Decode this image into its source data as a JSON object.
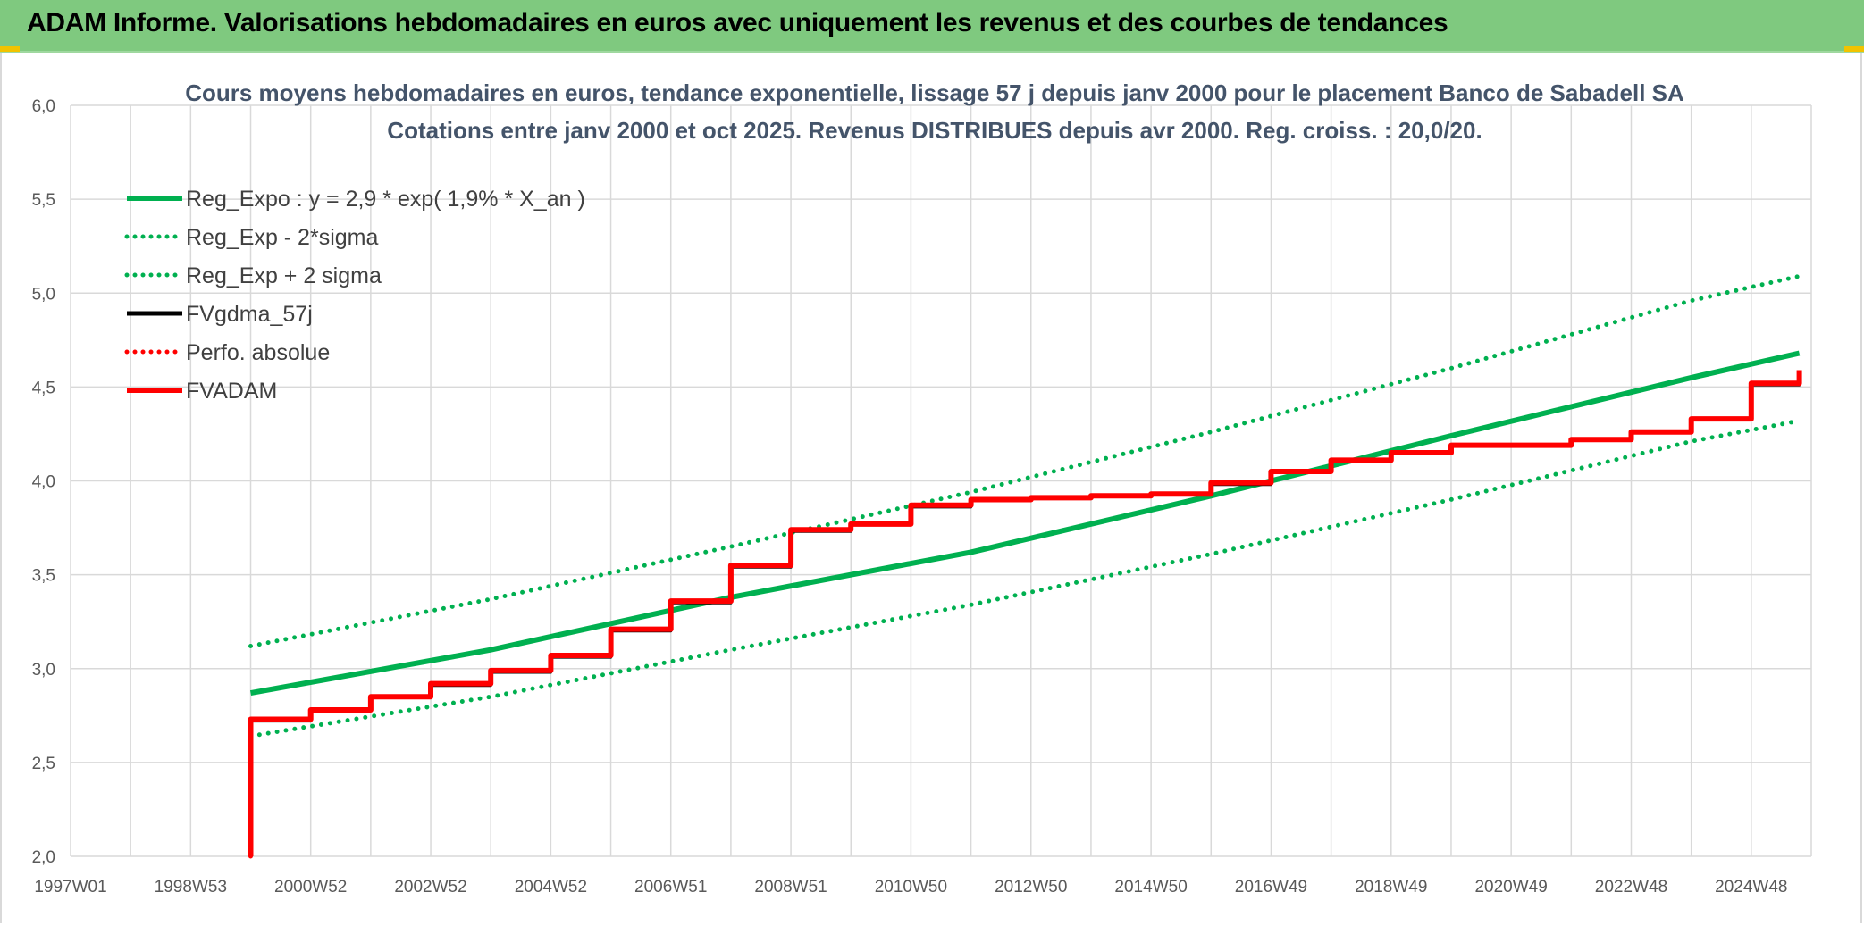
{
  "banner": {
    "title": "ADAM Informe. Valorisations hebdomadaires en euros avec uniquement les revenus et des courbes de tendances",
    "color": "#7fc97f"
  },
  "chart_data": {
    "type": "line",
    "title": "Cours moyens hebdomadaires en euros, tendance exponentielle, lissage 57 j depuis janv 2000 pour le placement Banco de Sabadell SA",
    "subtitle": "Cotations entre janv 2000 et oct 2025. Revenus DISTRIBUES depuis avr 2000. Reg. croiss. : 20,0/20.",
    "xlabel": "",
    "ylabel": "",
    "x_ticks": [
      "1997W01",
      "1998W53",
      "2000W52",
      "2002W52",
      "2004W52",
      "2006W51",
      "2008W51",
      "2010W50",
      "2012W50",
      "2014W50",
      "2016W49",
      "2018W49",
      "2020W49",
      "2022W48",
      "2024W48"
    ],
    "y_ticks": [
      "2,0",
      "2,5",
      "3,0",
      "3,5",
      "4,0",
      "4,5",
      "5,0",
      "5,5",
      "6,0"
    ],
    "ylim": [
      2.0,
      6.0
    ],
    "xlim": [
      1997.0,
      2026.0
    ],
    "grid": true,
    "legend_position": "top-left",
    "series": [
      {
        "name": "Reg_Expo : y = 2,9 * exp( 1,9% *  X_an )",
        "color": "#00b050",
        "style": "solid",
        "x": [
          2000.0,
          2004.0,
          2008.0,
          2012.0,
          2016.0,
          2020.0,
          2024.0,
          2025.8
        ],
        "values": [
          2.87,
          3.1,
          3.38,
          3.62,
          3.92,
          4.24,
          4.55,
          4.68
        ]
      },
      {
        "name": "Reg_Exp - 2*sigma",
        "color": "#00b050",
        "style": "dotted",
        "x": [
          2000.0,
          2004.0,
          2008.0,
          2012.0,
          2016.0,
          2020.0,
          2024.0,
          2025.8
        ],
        "values": [
          2.64,
          2.85,
          3.1,
          3.34,
          3.61,
          3.9,
          4.21,
          4.32
        ]
      },
      {
        "name": "Reg_Exp + 2 sigma",
        "color": "#00b050",
        "style": "dotted",
        "x": [
          2000.0,
          2004.0,
          2008.0,
          2012.0,
          2016.0,
          2020.0,
          2024.0,
          2025.8
        ],
        "values": [
          3.12,
          3.37,
          3.65,
          3.94,
          4.26,
          4.6,
          4.96,
          5.09
        ]
      },
      {
        "name": "FVgdma_57j",
        "color": "#000000",
        "style": "solid",
        "x": [
          2000.0,
          2001.0,
          2002.0,
          2003.0,
          2004.0,
          2005.0,
          2006.0,
          2007.0,
          2008.0,
          2009.0,
          2010.0,
          2011.0,
          2012.0,
          2013.0,
          2014.0,
          2015.0,
          2016.0,
          2017.0,
          2018.0,
          2019.0,
          2020.0,
          2021.0,
          2022.0,
          2023.0,
          2024.0,
          2025.0,
          2025.8
        ],
        "values": [
          2.72,
          2.78,
          2.85,
          2.91,
          2.98,
          3.06,
          3.2,
          3.35,
          3.54,
          3.73,
          3.77,
          3.86,
          3.9,
          3.91,
          3.92,
          3.93,
          3.98,
          4.05,
          4.1,
          4.15,
          4.19,
          4.19,
          4.22,
          4.26,
          4.33,
          4.51,
          4.59
        ]
      },
      {
        "name": "Perfo. absolue",
        "color": "#ff0000",
        "style": "dotted",
        "x": [
          2000.0,
          2001.0,
          2002.0,
          2003.0,
          2004.0,
          2005.0,
          2006.0,
          2007.0,
          2008.0,
          2009.0,
          2010.0,
          2011.0,
          2012.0,
          2013.0,
          2014.0,
          2015.0,
          2016.0,
          2017.0,
          2018.0,
          2019.0,
          2020.0,
          2021.0,
          2022.0,
          2023.0,
          2024.0,
          2025.0,
          2025.8
        ],
        "values": [
          2.73,
          2.78,
          2.85,
          2.92,
          2.99,
          3.07,
          3.21,
          3.36,
          3.55,
          3.74,
          3.77,
          3.87,
          3.9,
          3.91,
          3.92,
          3.93,
          3.99,
          4.05,
          4.11,
          4.15,
          4.19,
          4.19,
          4.22,
          4.26,
          4.33,
          4.52,
          4.59
        ]
      },
      {
        "name": "FVADAM",
        "color": "#ff0000",
        "style": "solid-thick",
        "x": [
          2000.0,
          2001.0,
          2002.0,
          2003.0,
          2004.0,
          2005.0,
          2006.0,
          2007.0,
          2008.0,
          2009.0,
          2010.0,
          2011.0,
          2012.0,
          2013.0,
          2014.0,
          2015.0,
          2016.0,
          2017.0,
          2018.0,
          2019.0,
          2020.0,
          2021.0,
          2022.0,
          2023.0,
          2024.0,
          2025.0,
          2025.8
        ],
        "values": [
          2.73,
          2.78,
          2.85,
          2.92,
          2.99,
          3.07,
          3.21,
          3.36,
          3.55,
          3.74,
          3.77,
          3.87,
          3.9,
          3.91,
          3.92,
          3.93,
          3.99,
          4.05,
          4.11,
          4.15,
          4.19,
          4.19,
          4.22,
          4.26,
          4.33,
          4.52,
          4.59
        ]
      }
    ]
  }
}
